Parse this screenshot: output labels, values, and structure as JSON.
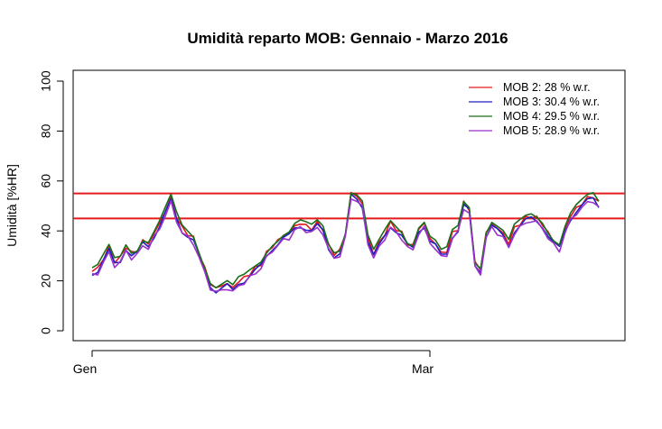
{
  "chart_data": {
    "type": "line",
    "title": "Umidità reparto MOB: Gennaio - Marzo 2016",
    "xlabel": "",
    "ylabel": "Umidità [%HR]",
    "x_range": [
      1,
      91
    ],
    "ylim": [
      0,
      100
    ],
    "x_ticks": [
      {
        "label": "Gen",
        "x": 1
      },
      {
        "label": "Mar",
        "x": 61
      }
    ],
    "y_ticks": [
      0,
      20,
      40,
      60,
      80,
      100
    ],
    "grid": false,
    "legend_position": "top-right",
    "reference_lines": [
      {
        "y": 55,
        "color": "#e41a1c"
      },
      {
        "y": 45,
        "color": "#e41a1c"
      }
    ],
    "x": [
      1,
      2,
      3,
      4,
      5,
      6,
      7,
      8,
      9,
      10,
      11,
      12,
      13,
      14,
      15,
      16,
      17,
      18,
      19,
      20,
      21,
      22,
      23,
      24,
      25,
      26,
      27,
      28,
      29,
      30,
      31,
      32,
      33,
      34,
      35,
      36,
      37,
      38,
      39,
      40,
      41,
      42,
      43,
      44,
      45,
      46,
      47,
      48,
      49,
      50,
      51,
      52,
      53,
      54,
      55,
      56,
      57,
      58,
      59,
      60,
      61,
      62,
      63,
      64,
      65,
      66,
      67,
      68,
      69,
      70,
      71,
      72,
      73,
      74,
      75,
      76,
      77,
      78,
      79,
      80,
      81,
      82,
      83,
      84,
      85,
      86,
      87,
      88,
      89,
      90,
      91
    ],
    "series": [
      {
        "name": "MOB 2:  28 % w.r.",
        "color": "#e41a1c",
        "offset": 1.0
      },
      {
        "name": "MOB 3:  30.4 % w.r.",
        "color": "#1f1fbf",
        "offset": 0.0
      },
      {
        "name": "MOB 4:  29.5 % w.r.",
        "color": "#1a6e1a",
        "offset": 1.8
      },
      {
        "name": "MOB 5:  28.9 % w.r.",
        "color": "#9932cc",
        "offset": -0.8
      }
    ],
    "values": [
      23,
      24,
      28,
      32,
      27,
      28,
      33,
      30,
      31,
      35,
      34,
      38,
      42,
      47,
      52,
      45,
      40,
      38,
      36,
      30,
      24,
      18,
      16,
      17,
      18,
      16,
      19,
      20,
      22,
      24,
      26,
      30,
      33,
      35,
      37,
      38,
      41,
      42,
      41,
      40,
      42,
      40,
      33,
      30,
      31,
      38,
      54,
      53,
      50,
      36,
      30,
      34,
      38,
      42,
      40,
      38,
      34,
      33,
      40,
      42,
      36,
      34,
      30,
      31,
      38,
      40,
      50,
      48,
      26,
      24,
      38,
      42,
      40,
      38,
      34,
      40,
      42,
      44,
      45,
      44,
      42,
      38,
      35,
      33,
      40,
      45,
      48,
      50,
      52,
      53,
      50
    ]
  }
}
